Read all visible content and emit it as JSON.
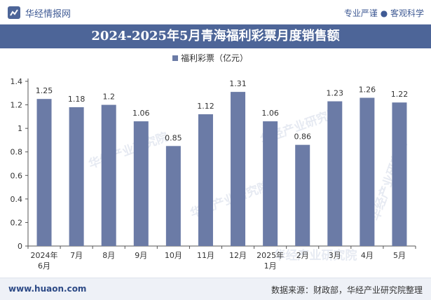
{
  "header": {
    "brand": "华经情报网",
    "tagline": "专业严谨 ● 客观科学"
  },
  "footer": {
    "url": "www.huaon.com",
    "source": "数据来源：财政部，华经产业研究院整理"
  },
  "watermark": {
    "text": "华经产业研究院",
    "url": "www.huaon.com"
  },
  "colors": {
    "bar": "#6b7ba6",
    "title_bg": "#4d6598",
    "text": "#333333"
  },
  "chart_data": {
    "type": "bar",
    "title": "2024-2025年5月青海福利彩票月度销售额",
    "legend": "福利彩票（亿元）",
    "legend_position": "top",
    "categories": [
      "2024年\n6月",
      "7月",
      "8月",
      "9月",
      "10月",
      "11月",
      "12月",
      "2025年\n1月",
      "2月",
      "3月",
      "4月",
      "5月"
    ],
    "series": [
      {
        "name": "福利彩票（亿元）",
        "values": [
          1.25,
          1.18,
          1.2,
          1.06,
          0.85,
          1.12,
          1.31,
          1.06,
          0.86,
          1.23,
          1.26,
          1.22
        ]
      }
    ],
    "value_labels": [
      "1.25",
      "1.18",
      "1.2",
      "1.06",
      "0.85",
      "1.12",
      "1.31",
      "1.06",
      "0.86",
      "1.23",
      "1.26",
      "1.22"
    ],
    "ylim": [
      0,
      1.4
    ],
    "yticks": [
      "0",
      "0.2",
      "0.4",
      "0.6",
      "0.8",
      "1",
      "1.2",
      "1.4"
    ],
    "grid": false
  }
}
